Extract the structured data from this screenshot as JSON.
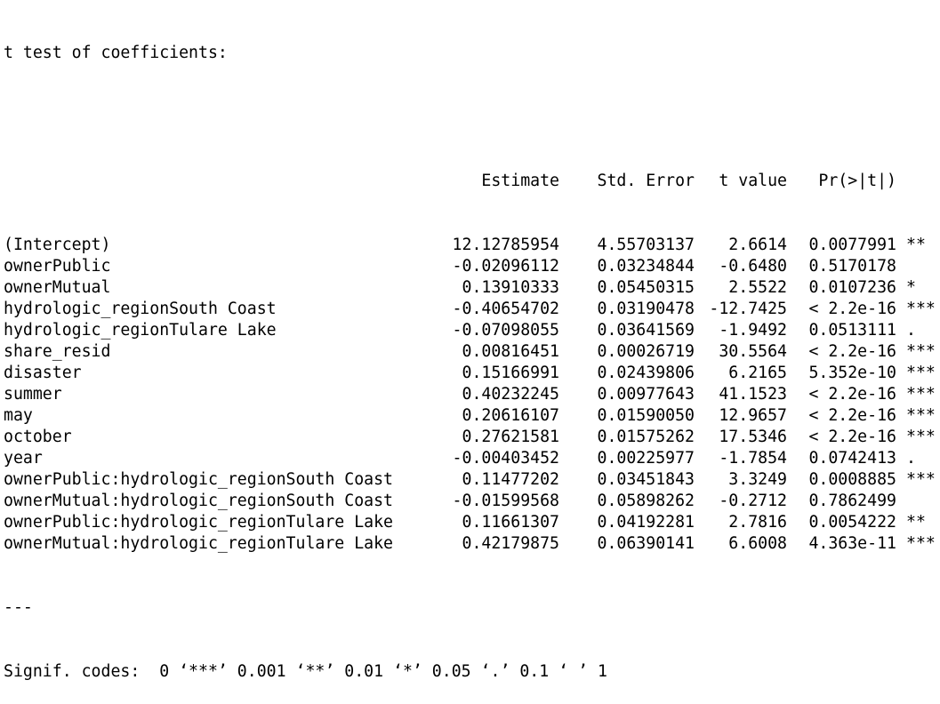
{
  "title": "t test of coefficients:",
  "columns": {
    "estimate": "Estimate",
    "std_error": "Std. Error",
    "t_value": "t value",
    "p_value": "Pr(>|t|)"
  },
  "rows": [
    {
      "name": "(Intercept)",
      "estimate": "12.12785954",
      "std_error": "4.55703137",
      "t_value": "2.6614",
      "p_value": "0.0077991",
      "signif": "**"
    },
    {
      "name": "ownerPublic",
      "estimate": "-0.02096112",
      "std_error": "0.03234844",
      "t_value": "-0.6480",
      "p_value": "0.5170178",
      "signif": ""
    },
    {
      "name": "ownerMutual",
      "estimate": "0.13910333",
      "std_error": "0.05450315",
      "t_value": "2.5522",
      "p_value": "0.0107236",
      "signif": "*"
    },
    {
      "name": "hydrologic_regionSouth Coast",
      "estimate": "-0.40654702",
      "std_error": "0.03190478",
      "t_value": "-12.7425",
      "p_value": "< 2.2e-16",
      "signif": "***"
    },
    {
      "name": "hydrologic_regionTulare Lake",
      "estimate": "-0.07098055",
      "std_error": "0.03641569",
      "t_value": "-1.9492",
      "p_value": "0.0513111",
      "signif": "."
    },
    {
      "name": "share_resid",
      "estimate": "0.00816451",
      "std_error": "0.00026719",
      "t_value": "30.5564",
      "p_value": "< 2.2e-16",
      "signif": "***"
    },
    {
      "name": "disaster",
      "estimate": "0.15166991",
      "std_error": "0.02439806",
      "t_value": "6.2165",
      "p_value": "5.352e-10",
      "signif": "***"
    },
    {
      "name": "summer",
      "estimate": "0.40232245",
      "std_error": "0.00977643",
      "t_value": "41.1523",
      "p_value": "< 2.2e-16",
      "signif": "***"
    },
    {
      "name": "may",
      "estimate": "0.20616107",
      "std_error": "0.01590050",
      "t_value": "12.9657",
      "p_value": "< 2.2e-16",
      "signif": "***"
    },
    {
      "name": "october",
      "estimate": "0.27621581",
      "std_error": "0.01575262",
      "t_value": "17.5346",
      "p_value": "< 2.2e-16",
      "signif": "***"
    },
    {
      "name": "year",
      "estimate": "-0.00403452",
      "std_error": "0.00225977",
      "t_value": "-1.7854",
      "p_value": "0.0742413",
      "signif": "."
    },
    {
      "name": "ownerPublic:hydrologic_regionSouth Coast",
      "estimate": "0.11477202",
      "std_error": "0.03451843",
      "t_value": "3.3249",
      "p_value": "0.0008885",
      "signif": "***"
    },
    {
      "name": "ownerMutual:hydrologic_regionSouth Coast",
      "estimate": "-0.01599568",
      "std_error": "0.05898262",
      "t_value": "-0.2712",
      "p_value": "0.7862499",
      "signif": ""
    },
    {
      "name": "ownerPublic:hydrologic_regionTulare Lake",
      "estimate": "0.11661307",
      "std_error": "0.04192281",
      "t_value": "2.7816",
      "p_value": "0.0054222",
      "signif": "**"
    },
    {
      "name": "ownerMutual:hydrologic_regionTulare Lake",
      "estimate": "0.42179875",
      "std_error": "0.06390141",
      "t_value": "6.6008",
      "p_value": "4.363e-11",
      "signif": "***"
    }
  ],
  "separator": "---",
  "signif_codes": "Signif. codes:  0 ‘***’ 0.001 ‘**’ 0.01 ‘*’ 0.05 ‘.’ 0.1 ‘ ’ 1"
}
